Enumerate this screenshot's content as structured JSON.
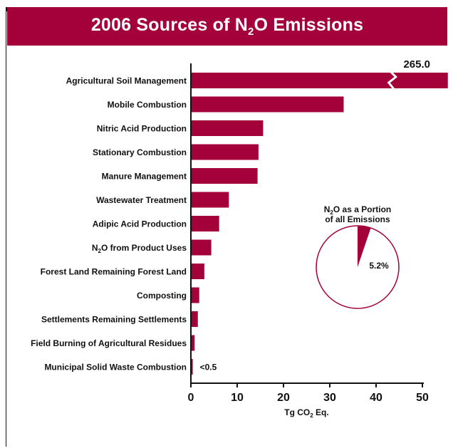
{
  "title": {
    "prefix": "2006 Sources of N",
    "sub": "2",
    "suffix": "O Emissions"
  },
  "x_axis": {
    "label_prefix": "Tg CO",
    "label_sub": "2",
    "label_suffix": " Eq."
  },
  "inset": {
    "title_line1_prefix": "N",
    "title_line1_sub": "2",
    "title_line1_suffix": "O as a Portion",
    "title_line2": "of all Emissions",
    "value_label": "5.2%",
    "share": 0.052
  },
  "colors": {
    "bar": "#a4003a",
    "axis": "#111111",
    "text": "#111111"
  },
  "chart_data": {
    "type": "bar",
    "orientation": "horizontal",
    "title": "2006 Sources of N2O Emissions",
    "xlabel": "Tg CO2 Eq.",
    "xlim": [
      0,
      50
    ],
    "xticks": [
      0,
      10,
      20,
      30,
      40,
      50
    ],
    "axis_break": true,
    "categories": [
      "Agricultural Soil Management",
      "Mobile Combustion",
      "Nitric Acid Production",
      "Stationary Combustion",
      "Manure Management",
      "Wastewater Treatment",
      "Adipic Acid Production",
      "N2O from Product Uses",
      "Forest Land Remaining Forest Land",
      "Composting",
      "Settlements Remaining Settlements",
      "Field Burning of Agricultural Residues",
      "Municipal Solid Waste Combustion"
    ],
    "values": [
      265.0,
      33.0,
      15.6,
      14.6,
      14.4,
      8.2,
      6.1,
      4.4,
      2.9,
      1.8,
      1.5,
      0.8,
      0.4
    ],
    "data_labels": [
      "265.0",
      "",
      "",
      "",
      "",
      "",
      "",
      "",
      "",
      "",
      "",
      "",
      "<0.5"
    ]
  }
}
